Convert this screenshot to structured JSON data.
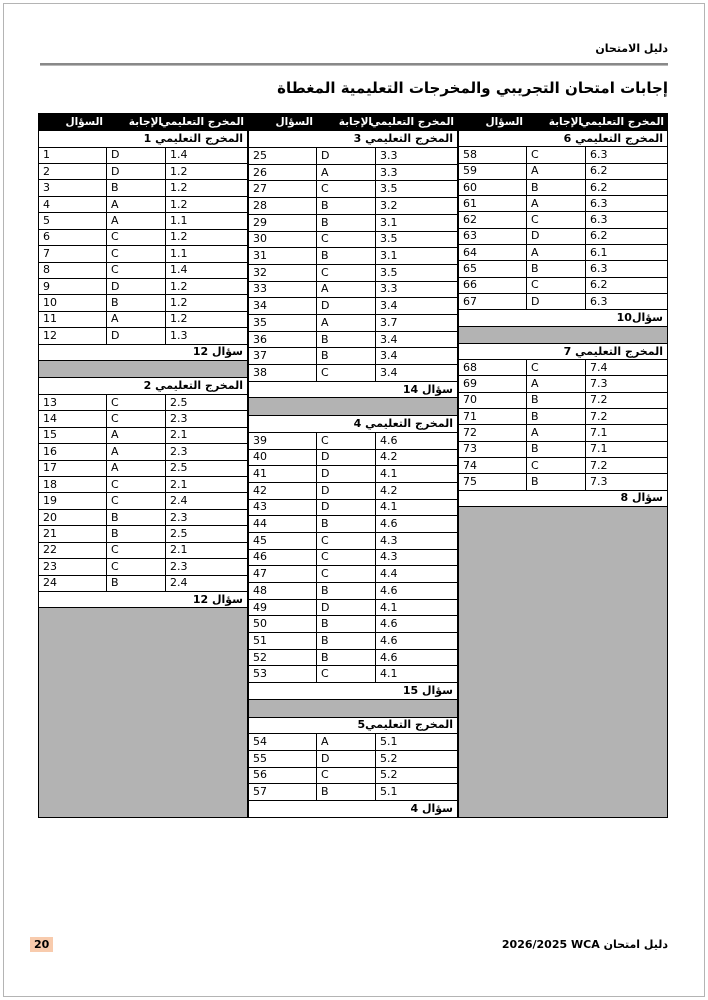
{
  "page": {
    "header_text": "دليل الامتحان",
    "title": "إجابات امتحان التجريبي والمخرجات التعليمية المغطاة"
  },
  "footer": {
    "page_number": "20",
    "doc_name": "دليل امتحان",
    "brand": "WCA",
    "years": "2026/2025"
  },
  "table": {
    "column_headers": [
      "المخرج التعليمي",
      "الإجابة",
      "السؤال"
    ],
    "groups": [
      {
        "position": "right",
        "rows": [
          {
            "t": "o",
            "label": "المخرج التعليمي 6"
          },
          {
            "t": "q",
            "n": "58",
            "a": "C",
            "lo": "6.3"
          },
          {
            "t": "q",
            "n": "59",
            "a": "A",
            "lo": "6.2"
          },
          {
            "t": "q",
            "n": "60",
            "a": "B",
            "lo": "6.2"
          },
          {
            "t": "q",
            "n": "61",
            "a": "A",
            "lo": "6.3"
          },
          {
            "t": "q",
            "n": "62",
            "a": "C",
            "lo": "6.3"
          },
          {
            "t": "q",
            "n": "63",
            "a": "D",
            "lo": "6.2"
          },
          {
            "t": "q",
            "n": "64",
            "a": "A",
            "lo": "6.1"
          },
          {
            "t": "q",
            "n": "65",
            "a": "B",
            "lo": "6.3"
          },
          {
            "t": "q",
            "n": "66",
            "a": "C",
            "lo": "6.2"
          },
          {
            "t": "q",
            "n": "67",
            "a": "D",
            "lo": "6.3"
          },
          {
            "t": "c",
            "label": "سؤال10"
          },
          {
            "t": "g",
            "n": 1
          },
          {
            "t": "o",
            "label": "المخرج التعليمي 7"
          },
          {
            "t": "q",
            "n": "68",
            "a": "C",
            "lo": "7.4"
          },
          {
            "t": "q",
            "n": "69",
            "a": "A",
            "lo": "7.3"
          },
          {
            "t": "q",
            "n": "70",
            "a": "B",
            "lo": "7.2"
          },
          {
            "t": "q",
            "n": "71",
            "a": "B",
            "lo": "7.2"
          },
          {
            "t": "q",
            "n": "72",
            "a": "A",
            "lo": "7.1"
          },
          {
            "t": "q",
            "n": "73",
            "a": "B",
            "lo": "7.1"
          },
          {
            "t": "q",
            "n": "74",
            "a": "C",
            "lo": "7.2"
          },
          {
            "t": "q",
            "n": "75",
            "a": "B",
            "lo": "7.3"
          },
          {
            "t": "c",
            "label": "سؤال 8"
          },
          {
            "t": "g",
            "n": 18
          }
        ]
      },
      {
        "position": "middle",
        "rows": [
          {
            "t": "o",
            "label": "المخرج التعليمي 3"
          },
          {
            "t": "q",
            "n": "25",
            "a": "D",
            "lo": "3.3"
          },
          {
            "t": "q",
            "n": "26",
            "a": "A",
            "lo": "3.3"
          },
          {
            "t": "q",
            "n": "27",
            "a": "C",
            "lo": "3.5"
          },
          {
            "t": "q",
            "n": "28",
            "a": "B",
            "lo": "3.2"
          },
          {
            "t": "q",
            "n": "29",
            "a": "B",
            "lo": "3.1"
          },
          {
            "t": "q",
            "n": "30",
            "a": "C",
            "lo": "3.5"
          },
          {
            "t": "q",
            "n": "31",
            "a": "B",
            "lo": "3.1"
          },
          {
            "t": "q",
            "n": "32",
            "a": "C",
            "lo": "3.5"
          },
          {
            "t": "q",
            "n": "33",
            "a": "A",
            "lo": "3.3"
          },
          {
            "t": "q",
            "n": "34",
            "a": "D",
            "lo": "3.4"
          },
          {
            "t": "q",
            "n": "35",
            "a": "A",
            "lo": "3.7"
          },
          {
            "t": "q",
            "n": "36",
            "a": "B",
            "lo": "3.4"
          },
          {
            "t": "q",
            "n": "37",
            "a": "B",
            "lo": "3.4"
          },
          {
            "t": "q",
            "n": "38",
            "a": "C",
            "lo": "3.4"
          },
          {
            "t": "c",
            "label": "سؤال 14"
          },
          {
            "t": "g",
            "n": 1
          },
          {
            "t": "o",
            "label": "المخرج التعليمي 4"
          },
          {
            "t": "q",
            "n": "39",
            "a": "C",
            "lo": "4.6"
          },
          {
            "t": "q",
            "n": "40",
            "a": "D",
            "lo": "4.2"
          },
          {
            "t": "q",
            "n": "41",
            "a": "D",
            "lo": "4.1"
          },
          {
            "t": "q",
            "n": "42",
            "a": "D",
            "lo": "4.2"
          },
          {
            "t": "q",
            "n": "43",
            "a": "D",
            "lo": "4.1"
          },
          {
            "t": "q",
            "n": "44",
            "a": "B",
            "lo": "4.6"
          },
          {
            "t": "q",
            "n": "45",
            "a": "C",
            "lo": "4.3"
          },
          {
            "t": "q",
            "n": "46",
            "a": "C",
            "lo": "4.3"
          },
          {
            "t": "q",
            "n": "47",
            "a": "C",
            "lo": "4.4"
          },
          {
            "t": "q",
            "n": "48",
            "a": "B",
            "lo": "4.6"
          },
          {
            "t": "q",
            "n": "49",
            "a": "D",
            "lo": "4.1"
          },
          {
            "t": "q",
            "n": "50",
            "a": "B",
            "lo": "4.6"
          },
          {
            "t": "q",
            "n": "51",
            "a": "B",
            "lo": "4.6"
          },
          {
            "t": "q",
            "n": "52",
            "a": "B",
            "lo": "4.6"
          },
          {
            "t": "q",
            "n": "53",
            "a": "C",
            "lo": "4.1"
          },
          {
            "t": "c",
            "label": "سؤال 15"
          },
          {
            "t": "g",
            "n": 1
          },
          {
            "t": "o",
            "label": "المخرج التعليمي5"
          },
          {
            "t": "q",
            "n": "54",
            "a": "A",
            "lo": "5.1"
          },
          {
            "t": "q",
            "n": "55",
            "a": "D",
            "lo": "5.2"
          },
          {
            "t": "q",
            "n": "56",
            "a": "C",
            "lo": "5.2"
          },
          {
            "t": "q",
            "n": "57",
            "a": "B",
            "lo": "5.1"
          },
          {
            "t": "c",
            "label": "سؤال 4"
          }
        ]
      },
      {
        "position": "left",
        "rows": [
          {
            "t": "o",
            "label": "المخرج التعليمي 1"
          },
          {
            "t": "q",
            "n": "1",
            "a": "D",
            "lo": "1.4"
          },
          {
            "t": "q",
            "n": "2",
            "a": "D",
            "lo": "1.2"
          },
          {
            "t": "q",
            "n": "3",
            "a": "B",
            "lo": "1.2"
          },
          {
            "t": "q",
            "n": "4",
            "a": "A",
            "lo": "1.2"
          },
          {
            "t": "q",
            "n": "5",
            "a": "A",
            "lo": "1.1"
          },
          {
            "t": "q",
            "n": "6",
            "a": "C",
            "lo": "1.2"
          },
          {
            "t": "q",
            "n": "7",
            "a": "C",
            "lo": "1.1"
          },
          {
            "t": "q",
            "n": "8",
            "a": "C",
            "lo": "1.4"
          },
          {
            "t": "q",
            "n": "9",
            "a": "D",
            "lo": "1.2"
          },
          {
            "t": "q",
            "n": "10",
            "a": "B",
            "lo": "1.2"
          },
          {
            "t": "q",
            "n": "11",
            "a": "A",
            "lo": "1.2"
          },
          {
            "t": "q",
            "n": "12",
            "a": "D",
            "lo": "1.3"
          },
          {
            "t": "c",
            "label": "سؤال 12"
          },
          {
            "t": "g",
            "n": 1
          },
          {
            "t": "o",
            "label": "المخرج التعليمي 2"
          },
          {
            "t": "q",
            "n": "13",
            "a": "C",
            "lo": "2.5"
          },
          {
            "t": "q",
            "n": "14",
            "a": "C",
            "lo": "2.3"
          },
          {
            "t": "q",
            "n": "15",
            "a": "A",
            "lo": "2.1"
          },
          {
            "t": "q",
            "n": "16",
            "a": "A",
            "lo": "2.3"
          },
          {
            "t": "q",
            "n": "17",
            "a": "A",
            "lo": "2.5"
          },
          {
            "t": "q",
            "n": "18",
            "a": "C",
            "lo": "2.1"
          },
          {
            "t": "q",
            "n": "19",
            "a": "C",
            "lo": "2.4"
          },
          {
            "t": "q",
            "n": "20",
            "a": "B",
            "lo": "2.3"
          },
          {
            "t": "q",
            "n": "21",
            "a": "B",
            "lo": "2.5"
          },
          {
            "t": "q",
            "n": "22",
            "a": "C",
            "lo": "2.1"
          },
          {
            "t": "q",
            "n": "23",
            "a": "C",
            "lo": "2.3"
          },
          {
            "t": "q",
            "n": "24",
            "a": "B",
            "lo": "2.4"
          },
          {
            "t": "c",
            "label": "سؤال 12"
          },
          {
            "t": "g",
            "n": 12
          }
        ]
      }
    ]
  }
}
